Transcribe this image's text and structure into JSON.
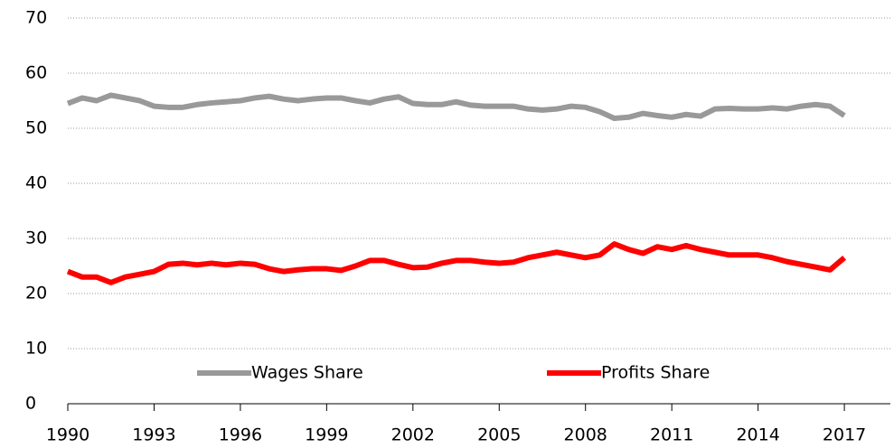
{
  "chart_data": {
    "type": "line",
    "x": [
      1990,
      1990.5,
      1991,
      1991.5,
      1992,
      1992.5,
      1993,
      1993.5,
      1994,
      1994.5,
      1995,
      1995.5,
      1996,
      1996.5,
      1997,
      1997.5,
      1998,
      1998.5,
      1999,
      1999.5,
      2000,
      2000.5,
      2001,
      2001.5,
      2002,
      2002.5,
      2003,
      2003.5,
      2004,
      2004.5,
      2005,
      2005.5,
      2006,
      2006.5,
      2007,
      2007.5,
      2008,
      2008.5,
      2009,
      2009.5,
      2010,
      2010.5,
      2011,
      2011.5,
      2012,
      2012.5,
      2013,
      2013.5,
      2014,
      2014.5,
      2015,
      2015.5,
      2016,
      2016.5,
      2017
    ],
    "series": [
      {
        "name": "Wages Share",
        "color": "#999999",
        "values": [
          54.5,
          55.5,
          55,
          56,
          55.5,
          55,
          54,
          53.8,
          53.8,
          54.3,
          54.6,
          54.8,
          55,
          55.5,
          55.8,
          55.3,
          55,
          55.3,
          55.5,
          55.5,
          55,
          54.6,
          55.3,
          55.7,
          54.5,
          54.3,
          54.3,
          54.8,
          54.2,
          54,
          54,
          54,
          53.5,
          53.3,
          53.5,
          54,
          53.8,
          53,
          51.8,
          52,
          52.7,
          52.3,
          52,
          52.5,
          52.2,
          53.5,
          53.6,
          53.5,
          53.5,
          53.7,
          53.5,
          54,
          54.3,
          54,
          52.3
        ]
      },
      {
        "name": "Profits Share",
        "color": "#ff0000",
        "values": [
          24,
          23,
          23,
          22,
          23,
          23.5,
          24,
          25.3,
          25.5,
          25.2,
          25.5,
          25.2,
          25.5,
          25.3,
          24.5,
          24,
          24.3,
          24.5,
          24.5,
          24.2,
          25,
          26,
          26,
          25.3,
          24.7,
          24.8,
          25.5,
          26,
          26,
          25.7,
          25.5,
          25.7,
          26.5,
          27,
          27.5,
          27,
          26.5,
          27,
          29,
          28,
          27.3,
          28.5,
          28,
          28.7,
          28,
          27.5,
          27,
          27,
          27,
          26.5,
          25.8,
          25.3,
          24.8,
          24.3,
          26.5
        ]
      }
    ],
    "xlim": [
      1990,
      2018.6
    ],
    "xticks": [
      1990,
      1993,
      1996,
      1999,
      2002,
      2005,
      2008,
      2011,
      2014,
      2017
    ],
    "ylim": [
      0,
      70
    ],
    "yticks": [
      0,
      10,
      20,
      30,
      40,
      50,
      60,
      70
    ],
    "grid": true,
    "legend": "lower center"
  }
}
